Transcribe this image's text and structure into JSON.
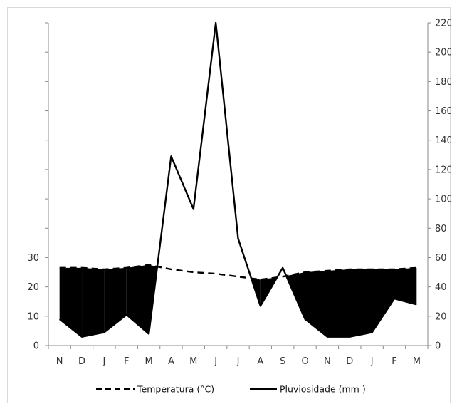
{
  "chart_data": {
    "type": "line",
    "categories": [
      "N",
      "D",
      "J",
      "F",
      "M",
      "A",
      "M",
      "J",
      "J",
      "A",
      "S",
      "O",
      "N",
      "D",
      "J",
      "F",
      "M"
    ],
    "series": [
      {
        "name": "Temperatura (°C)",
        "axis": "left",
        "style": "dashed",
        "values": [
          26.5,
          26.5,
          26,
          26.5,
          27.5,
          26,
          25,
          24.5,
          23.5,
          22.5,
          23.5,
          25,
          25.5,
          26,
          26,
          26,
          26.5
        ]
      },
      {
        "name": "Pluviosidade (mm )",
        "axis": "right",
        "style": "solid",
        "values": [
          18,
          6,
          9,
          21,
          8,
          129,
          93,
          220,
          73,
          27,
          53,
          18,
          6,
          6,
          9,
          32,
          28
        ]
      }
    ],
    "y_left": {
      "ticks": [
        0,
        10,
        20,
        30
      ],
      "scale_max": 110
    },
    "y_right": {
      "ticks": [
        0,
        20,
        40,
        60,
        80,
        100,
        120,
        140,
        160,
        180,
        200,
        220
      ],
      "ylim": [
        0,
        220
      ]
    },
    "dry_period_fill": "#000000",
    "legend": {
      "placement": "bottom",
      "items": [
        {
          "label": "Temperatura (°C)",
          "style": "dashed"
        },
        {
          "label": "Pluviosidade (mm )",
          "style": "solid"
        }
      ]
    },
    "grid": false
  }
}
